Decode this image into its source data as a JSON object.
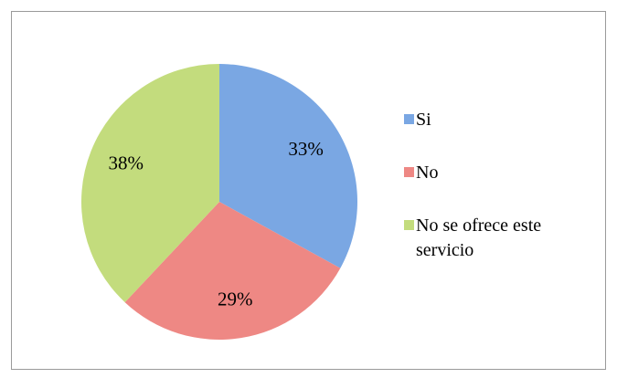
{
  "chart_data": {
    "type": "pie",
    "categories": [
      "Si",
      "No",
      "No se ofrece este servicio"
    ],
    "values": [
      33,
      29,
      38
    ],
    "value_labels": [
      "33%",
      "29%",
      "38%"
    ],
    "colors": [
      "#7aa7e3",
      "#ee8884",
      "#c3dc7d"
    ],
    "legend": "right"
  }
}
